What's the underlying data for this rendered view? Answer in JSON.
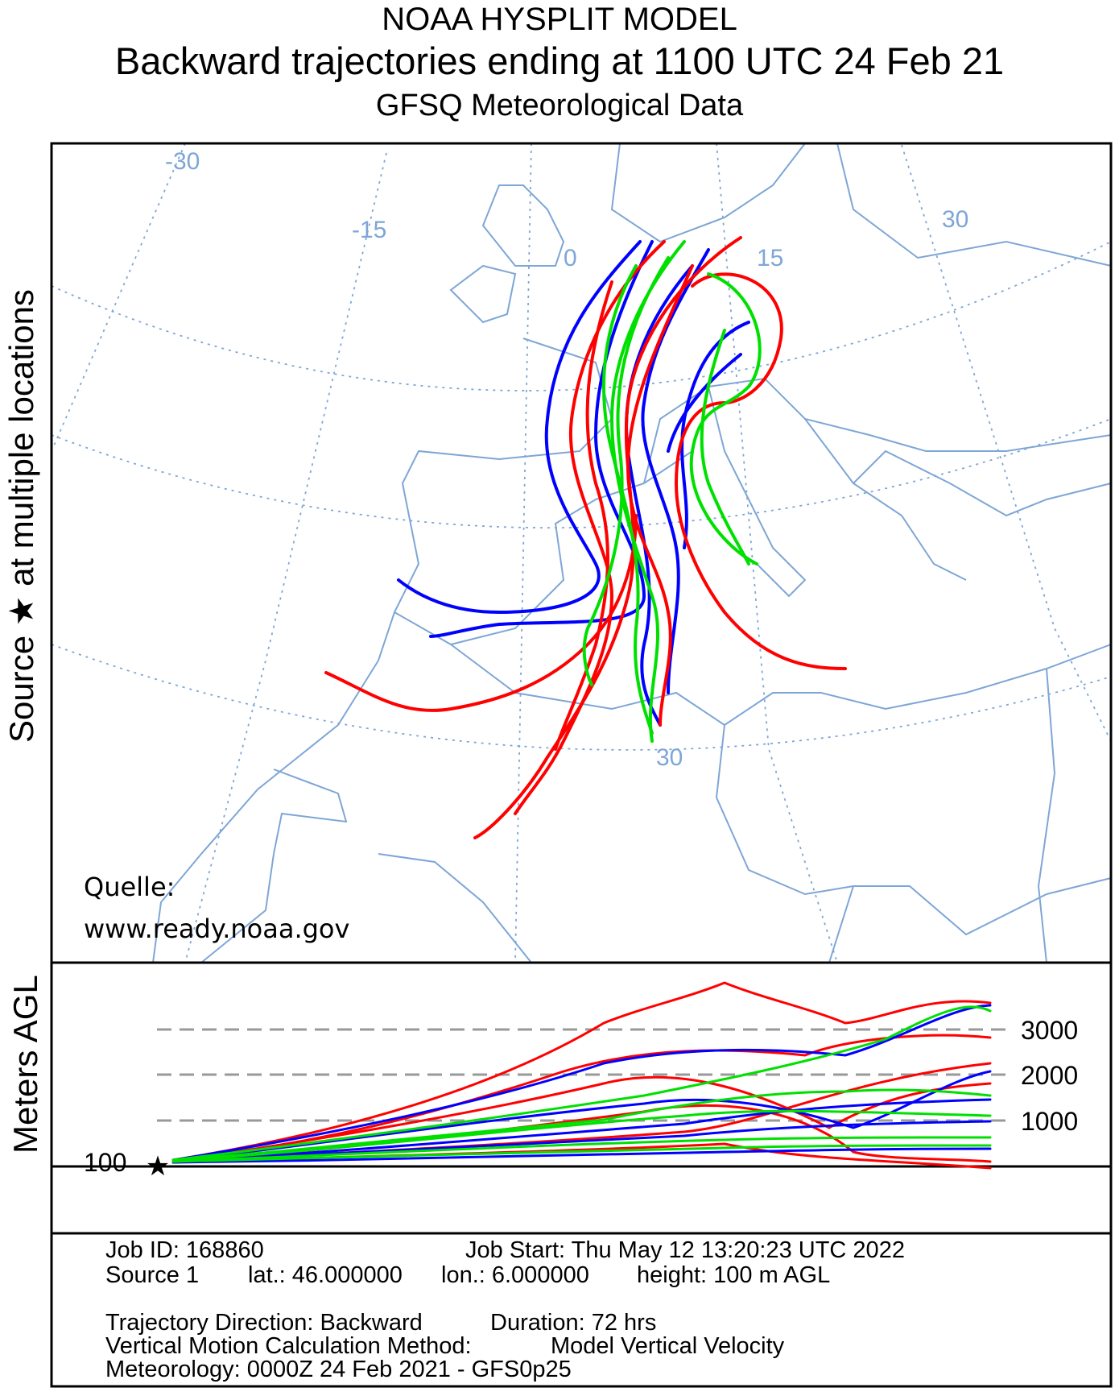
{
  "header": {
    "title1": "NOAA HYSPLIT MODEL",
    "title2": "Backward trajectories ending at 1100 UTC 24 Feb 21",
    "title3": "GFSQ Meteorological Data"
  },
  "map": {
    "left_axis_label_a": "Source",
    "left_axis_label_b": "at multiple locations",
    "source_marker_icon": "star-icon",
    "graticule_labels": [
      "-30",
      "-15",
      "0",
      "15",
      "30",
      "30"
    ],
    "credit_line1": "Quelle:",
    "credit_line2": "www.ready.noaa.gov",
    "colors": {
      "land_border": "#7ea6d6",
      "graticule": "#7ea6d6",
      "trajectory_red": "#ff0000",
      "trajectory_blue": "#0000ff",
      "trajectory_green": "#00e000"
    }
  },
  "height_panel": {
    "ylabel": "Meters AGL",
    "ticks": [
      "3000",
      "2000",
      "1000"
    ],
    "source_height_label": "100",
    "gridline_style": "dashed gray"
  },
  "footer": {
    "job_id": "Job ID: 168860",
    "job_start": "Job Start: Thu May 12 13:20:23 UTC 2022",
    "source": "Source 1",
    "lat": "lat.: 46.000000",
    "lon": "lon.: 6.000000",
    "height": "height: 100 m AGL",
    "direction": "Trajectory Direction: Backward",
    "duration": "Duration: 72 hrs",
    "vmethod_label": "Vertical Motion Calculation Method:",
    "vmethod_value": "Model Vertical Velocity",
    "meteorology": "Meteorology: 0000Z 24 Feb 2021 - GFS0p25"
  }
}
